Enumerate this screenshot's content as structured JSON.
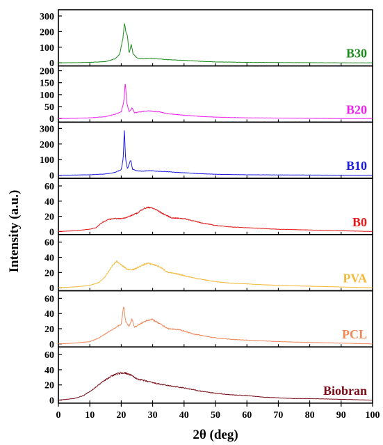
{
  "chart_data": {
    "type": "line",
    "layout": "stacked-panels",
    "xlabel": "2θ (deg)",
    "ylabel": "Intensity (a.u.)",
    "xlim": [
      0,
      100
    ],
    "x_ticks": [
      "0",
      "10",
      "20",
      "30",
      "40",
      "50",
      "60",
      "70",
      "80",
      "90",
      "100"
    ],
    "grid": false,
    "series": [
      {
        "name": "B30",
        "color": "#1a8a1a",
        "ylim": [
          -20,
          340
        ],
        "y_ticks": [
          "0",
          "100",
          "200",
          "300"
        ],
        "points": [
          [
            0,
            0
          ],
          [
            5,
            1
          ],
          [
            10,
            3
          ],
          [
            15,
            8
          ],
          [
            18,
            25
          ],
          [
            19.5,
            55
          ],
          [
            20.5,
            150
          ],
          [
            21.0,
            250
          ],
          [
            21.5,
            200
          ],
          [
            22.0,
            170
          ],
          [
            22.5,
            60
          ],
          [
            23.2,
            120
          ],
          [
            23.8,
            55
          ],
          [
            25,
            32
          ],
          [
            27,
            25
          ],
          [
            29,
            30
          ],
          [
            31,
            26
          ],
          [
            35,
            20
          ],
          [
            40,
            16
          ],
          [
            45,
            10
          ],
          [
            50,
            6
          ],
          [
            60,
            3
          ],
          [
            70,
            2
          ],
          [
            80,
            1
          ],
          [
            90,
            0
          ],
          [
            100,
            0
          ]
        ]
      },
      {
        "name": "B20",
        "color": "#ee22ee",
        "ylim": [
          -15,
          220
        ],
        "y_ticks": [
          "0",
          "50",
          "100",
          "150",
          "200"
        ],
        "points": [
          [
            0,
            0
          ],
          [
            5,
            1
          ],
          [
            10,
            3
          ],
          [
            15,
            8
          ],
          [
            18,
            18
          ],
          [
            20,
            28
          ],
          [
            20.8,
            70
          ],
          [
            21.3,
            150
          ],
          [
            21.8,
            65
          ],
          [
            22.5,
            28
          ],
          [
            23.5,
            45
          ],
          [
            24.2,
            24
          ],
          [
            26,
            28
          ],
          [
            29,
            32
          ],
          [
            32,
            28
          ],
          [
            35,
            20
          ],
          [
            40,
            14
          ],
          [
            45,
            9
          ],
          [
            50,
            6
          ],
          [
            60,
            3
          ],
          [
            70,
            2
          ],
          [
            80,
            1
          ],
          [
            90,
            0
          ],
          [
            100,
            0
          ]
        ]
      },
      {
        "name": "B10",
        "color": "#1a1adc",
        "ylim": [
          -20,
          340
        ],
        "y_ticks": [
          "0",
          "100",
          "200",
          "300"
        ],
        "points": [
          [
            0,
            0
          ],
          [
            5,
            1
          ],
          [
            10,
            3
          ],
          [
            15,
            8
          ],
          [
            18,
            18
          ],
          [
            20,
            35
          ],
          [
            20.6,
            100
          ],
          [
            21.0,
            285
          ],
          [
            21.4,
            100
          ],
          [
            22.0,
            40
          ],
          [
            23.0,
            100
          ],
          [
            23.6,
            38
          ],
          [
            25,
            28
          ],
          [
            27,
            26
          ],
          [
            29,
            30
          ],
          [
            31,
            26
          ],
          [
            35,
            22
          ],
          [
            40,
            16
          ],
          [
            45,
            10
          ],
          [
            50,
            6
          ],
          [
            60,
            3
          ],
          [
            70,
            2
          ],
          [
            80,
            1
          ],
          [
            90,
            0
          ],
          [
            100,
            0
          ]
        ]
      },
      {
        "name": "B0",
        "color": "#e41a1a",
        "ylim": [
          -4,
          70
        ],
        "y_ticks": [
          "0",
          "20",
          "40",
          "60"
        ],
        "points": [
          [
            0,
            0
          ],
          [
            5,
            1
          ],
          [
            10,
            3
          ],
          [
            12,
            5
          ],
          [
            14,
            12
          ],
          [
            16,
            16
          ],
          [
            18,
            17
          ],
          [
            20,
            17
          ],
          [
            22,
            19
          ],
          [
            25,
            24
          ],
          [
            27,
            30
          ],
          [
            29,
            32
          ],
          [
            31,
            29
          ],
          [
            33,
            24
          ],
          [
            36,
            18
          ],
          [
            40,
            17
          ],
          [
            43,
            14
          ],
          [
            46,
            11
          ],
          [
            50,
            8
          ],
          [
            55,
            6
          ],
          [
            60,
            5
          ],
          [
            65,
            4
          ],
          [
            70,
            3
          ],
          [
            80,
            2
          ],
          [
            90,
            1
          ],
          [
            100,
            0
          ]
        ]
      },
      {
        "name": "PVA",
        "color": "#f5b93a",
        "ylim": [
          -4,
          70
        ],
        "y_ticks": [
          "0",
          "20",
          "40",
          "60"
        ],
        "points": [
          [
            0,
            0
          ],
          [
            5,
            1
          ],
          [
            10,
            3
          ],
          [
            13,
            7
          ],
          [
            15,
            15
          ],
          [
            17,
            28
          ],
          [
            18.5,
            35
          ],
          [
            20,
            30
          ],
          [
            22,
            24
          ],
          [
            24,
            24
          ],
          [
            26,
            28
          ],
          [
            28,
            32
          ],
          [
            30,
            31
          ],
          [
            32,
            28
          ],
          [
            35,
            20
          ],
          [
            38,
            18
          ],
          [
            40,
            16
          ],
          [
            43,
            13
          ],
          [
            47,
            10
          ],
          [
            50,
            8
          ],
          [
            55,
            6
          ],
          [
            60,
            5
          ],
          [
            70,
            3
          ],
          [
            80,
            2
          ],
          [
            90,
            1
          ],
          [
            100,
            0
          ]
        ]
      },
      {
        "name": "PCL",
        "color": "#f0875a",
        "ylim": [
          -4,
          70
        ],
        "y_ticks": [
          "0",
          "20",
          "40",
          "60"
        ],
        "points": [
          [
            0,
            0
          ],
          [
            5,
            1
          ],
          [
            10,
            3
          ],
          [
            13,
            8
          ],
          [
            16,
            16
          ],
          [
            18,
            21
          ],
          [
            20,
            26
          ],
          [
            20.8,
            50
          ],
          [
            21.4,
            30
          ],
          [
            22.5,
            23
          ],
          [
            23.4,
            33
          ],
          [
            24.2,
            22
          ],
          [
            26,
            26
          ],
          [
            28,
            31
          ],
          [
            30,
            32
          ],
          [
            32,
            27
          ],
          [
            35,
            20
          ],
          [
            38,
            19
          ],
          [
            40,
            17
          ],
          [
            43,
            13
          ],
          [
            47,
            10
          ],
          [
            50,
            8
          ],
          [
            55,
            6
          ],
          [
            60,
            5
          ],
          [
            70,
            3
          ],
          [
            80,
            2
          ],
          [
            90,
            1
          ],
          [
            100,
            0
          ]
        ]
      },
      {
        "name": "Biobran",
        "color": "#7a0d18",
        "ylim": [
          -4,
          70
        ],
        "y_ticks": [
          "0",
          "20",
          "40",
          "60"
        ],
        "points": [
          [
            0,
            0
          ],
          [
            5,
            2
          ],
          [
            8,
            6
          ],
          [
            11,
            14
          ],
          [
            14,
            24
          ],
          [
            17,
            32
          ],
          [
            19,
            35
          ],
          [
            21,
            36
          ],
          [
            23,
            33
          ],
          [
            25,
            28
          ],
          [
            28,
            25
          ],
          [
            31,
            22
          ],
          [
            35,
            19
          ],
          [
            40,
            16
          ],
          [
            45,
            12
          ],
          [
            50,
            9
          ],
          [
            55,
            7
          ],
          [
            60,
            6
          ],
          [
            65,
            4
          ],
          [
            70,
            3
          ],
          [
            75,
            2
          ],
          [
            80,
            2
          ],
          [
            90,
            1
          ],
          [
            100,
            0
          ]
        ]
      }
    ]
  }
}
